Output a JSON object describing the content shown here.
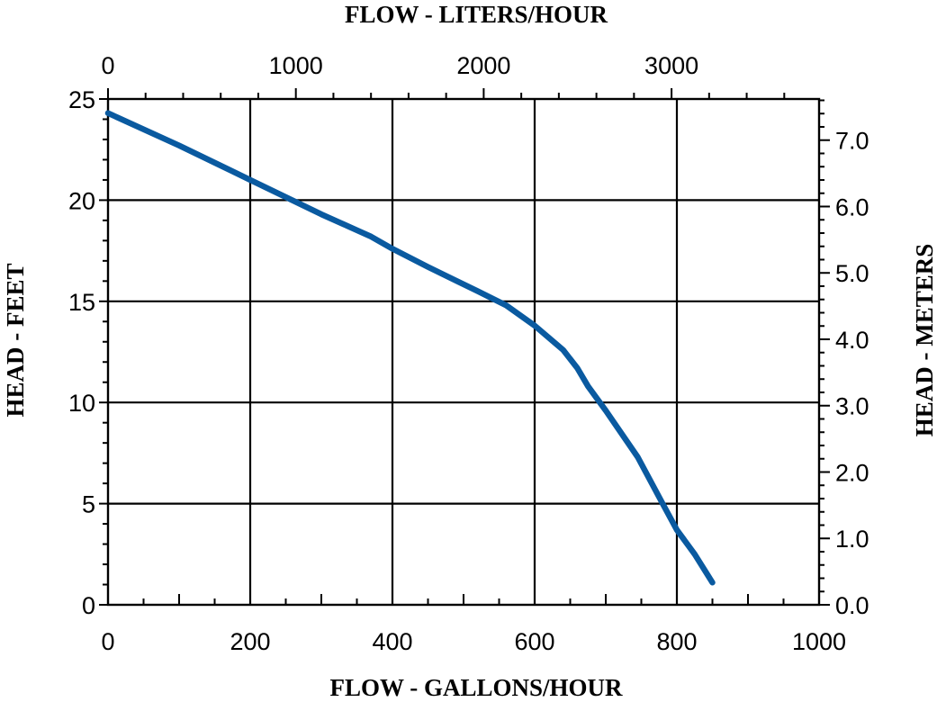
{
  "chart_data": {
    "type": "line",
    "title": "",
    "top_axis_label": "FLOW - LITERS/HOUR",
    "xlabel": "FLOW - GALLONS/HOUR",
    "ylabel": "HEAD - FEET",
    "right_axis_label": "HEAD - METERS",
    "xlim": [
      0,
      1000
    ],
    "ylim": [
      0,
      25
    ],
    "x_ticks": [
      "0",
      "200",
      "400",
      "600",
      "800",
      "1000"
    ],
    "y_ticks": [
      "0",
      "5",
      "10",
      "15",
      "20",
      "25"
    ],
    "top_ticks": [
      "0",
      "1000",
      "2000",
      "3000"
    ],
    "right_ticks": [
      "0.0",
      "1.0",
      "2.0",
      "3.0",
      "4.0",
      "5.0",
      "6.0",
      "7.0"
    ],
    "grid": true,
    "line_color": "#0a5aa0",
    "series": [
      {
        "x": [
          0,
          100,
          200,
          300,
          370,
          400,
          450,
          520,
          560,
          600,
          640,
          660,
          675,
          700,
          745,
          780,
          800,
          825,
          850
        ],
        "y": [
          24.3,
          22.7,
          21.0,
          19.3,
          18.2,
          17.6,
          16.7,
          15.5,
          14.8,
          13.8,
          12.6,
          11.7,
          10.8,
          9.6,
          7.3,
          5.0,
          3.7,
          2.5,
          1.1
        ]
      }
    ]
  }
}
